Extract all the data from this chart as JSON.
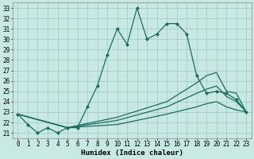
{
  "xlabel": "Humidex (Indice chaleur)",
  "ylabel": "",
  "background_color": "#c8e8e4",
  "grid_color": "#a8ccc8",
  "line_color": "#1a6b60",
  "xlim": [
    -0.5,
    23.5
  ],
  "ylim": [
    20.5,
    33.5
  ],
  "yticks": [
    21,
    22,
    23,
    24,
    25,
    26,
    27,
    28,
    29,
    30,
    31,
    32,
    33
  ],
  "xticks": [
    0,
    1,
    2,
    3,
    4,
    5,
    6,
    7,
    8,
    9,
    10,
    11,
    12,
    13,
    14,
    15,
    16,
    17,
    18,
    19,
    20,
    21,
    22,
    23
  ],
  "series": [
    {
      "x": [
        0,
        1,
        2,
        3,
        4,
        5,
        6,
        7,
        8,
        9,
        10,
        11,
        12,
        13,
        14,
        15,
        16,
        17,
        18,
        19,
        20,
        21,
        22,
        23
      ],
      "y": [
        22.8,
        21.8,
        21.0,
        21.5,
        21.0,
        21.5,
        21.5,
        23.5,
        25.5,
        28.5,
        31.0,
        29.5,
        33.0,
        30.0,
        30.5,
        31.5,
        31.5,
        30.5,
        26.5,
        24.8,
        25.0,
        24.8,
        24.2,
        23.0
      ],
      "marker": "D",
      "markersize": 2.0,
      "linewidth": 0.9,
      "linestyle": "-"
    },
    {
      "x": [
        0,
        5,
        10,
        15,
        18,
        19,
        20,
        21,
        22,
        23
      ],
      "y": [
        22.8,
        21.5,
        22.5,
        24.0,
        25.8,
        26.5,
        26.8,
        25.0,
        24.8,
        23.0
      ],
      "marker": null,
      "markersize": 0,
      "linewidth": 0.9,
      "linestyle": "-"
    },
    {
      "x": [
        0,
        5,
        10,
        15,
        18,
        19,
        20,
        21,
        22,
        23
      ],
      "y": [
        22.8,
        21.5,
        22.2,
        23.5,
        24.8,
        25.2,
        25.5,
        24.5,
        24.0,
        23.0
      ],
      "marker": null,
      "markersize": 0,
      "linewidth": 0.9,
      "linestyle": "-"
    },
    {
      "x": [
        0,
        5,
        10,
        15,
        18,
        19,
        20,
        21,
        22,
        23
      ],
      "y": [
        22.8,
        21.5,
        21.8,
        22.8,
        23.5,
        23.8,
        24.0,
        23.5,
        23.2,
        23.0
      ],
      "marker": null,
      "markersize": 0,
      "linewidth": 0.9,
      "linestyle": "-"
    }
  ],
  "title_fontsize": 6.5,
  "xlabel_fontsize": 6.5,
  "tick_fontsize": 5.5
}
